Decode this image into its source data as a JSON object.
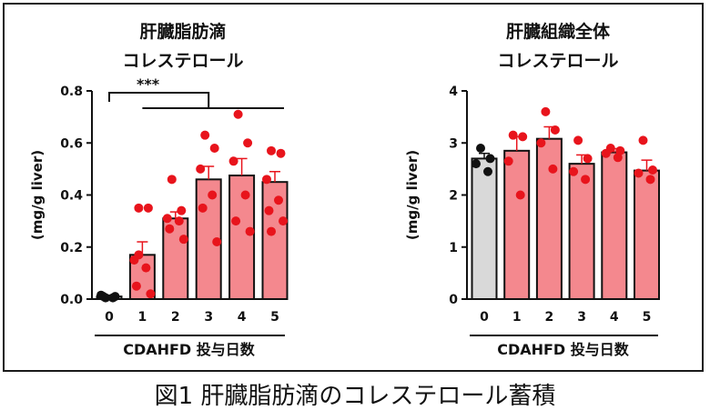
{
  "caption": "図1 肝臓脂肪滴のコレステロール蓄積",
  "colors": {
    "control_bar": "#d9d9d9",
    "treated_bar": "#f4888e",
    "control_dot": "#111111",
    "treated_dot": "#e8141c",
    "error": "#e8141c"
  },
  "chart_data": [
    {
      "type": "bar",
      "title": [
        "肝臓脂肪滴",
        "コレステロール"
      ],
      "xlabel": "CDAHFD 投与日数",
      "ylabel": "(mg/g liver)",
      "categories": [
        "0",
        "1",
        "2",
        "3",
        "4",
        "5"
      ],
      "values": [
        0.01,
        0.17,
        0.31,
        0.46,
        0.475,
        0.45
      ],
      "errors": [
        0.005,
        0.05,
        0.025,
        0.05,
        0.065,
        0.04
      ],
      "ylim": [
        0,
        0.8
      ],
      "yticks": [
        "0.0",
        "0.2",
        "0.4",
        "0.6",
        "0.8"
      ],
      "points": [
        [
          0.005,
          0.01,
          0.015,
          0.005,
          0.01
        ],
        [
          0.35,
          0.35,
          0.15,
          0.12,
          0.05,
          0.02,
          0.17
        ],
        [
          0.46,
          0.34,
          0.31,
          0.3,
          0.27,
          0.23
        ],
        [
          0.63,
          0.58,
          0.5,
          0.4,
          0.35,
          0.22
        ],
        [
          0.71,
          0.6,
          0.53,
          0.4,
          0.3,
          0.26
        ],
        [
          0.57,
          0.56,
          0.46,
          0.38,
          0.34,
          0.3,
          0.26
        ]
      ],
      "significance": "***"
    },
    {
      "type": "bar",
      "title": [
        "肝臓組織全体",
        "コレステロール"
      ],
      "xlabel": "CDAHFD 投与日数",
      "ylabel": "(mg/g liver)",
      "categories": [
        "0",
        "1",
        "2",
        "3",
        "4",
        "5"
      ],
      "values": [
        2.7,
        2.85,
        3.08,
        2.6,
        2.82,
        2.47
      ],
      "errors": [
        0.1,
        0.27,
        0.23,
        0.17,
        0.07,
        0.2
      ],
      "ylim": [
        0,
        4
      ],
      "yticks": [
        "0",
        "1",
        "2",
        "3",
        "4"
      ],
      "points": [
        [
          2.9,
          2.7,
          2.6,
          2.45
        ],
        [
          3.15,
          3.12,
          2.65,
          2.0
        ],
        [
          3.6,
          3.25,
          3.0,
          2.5
        ],
        [
          3.05,
          2.7,
          2.45,
          2.3
        ],
        [
          2.9,
          2.85,
          2.8,
          2.72
        ],
        [
          3.05,
          2.48,
          2.42,
          2.3
        ]
      ]
    }
  ]
}
